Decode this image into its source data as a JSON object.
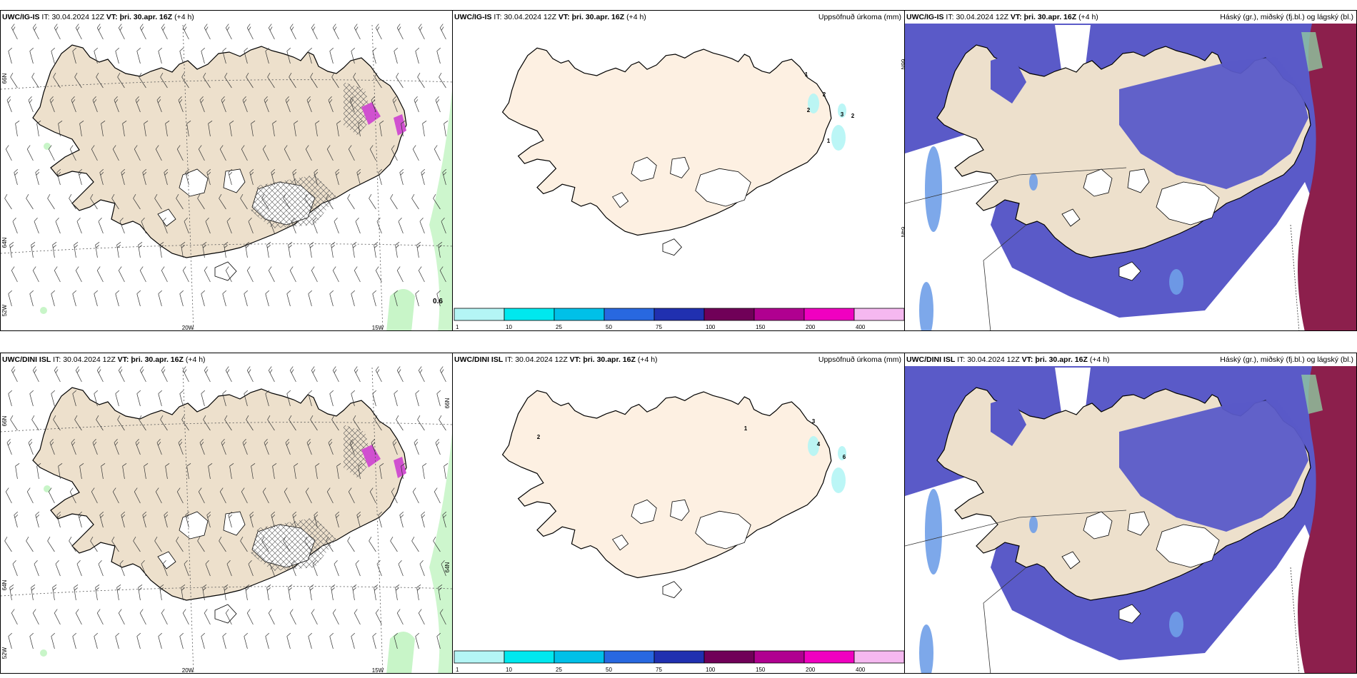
{
  "panels": [
    {
      "id": "top-left",
      "model": "UWC/IG-IS",
      "it_label": "IT:",
      "it_value": "30.04.2024 12Z",
      "vt_label": "VT:",
      "vt_value": "þri. 30.apr. 16Z",
      "lead": "(+4 h)",
      "right_title": "",
      "lat_labels": [
        "66N",
        "64N",
        "52W"
      ],
      "lon_labels": [
        "20W",
        "15W"
      ],
      "value_label": "0.6"
    },
    {
      "id": "top-middle",
      "model": "UWC/IG-IS",
      "it_label": "IT:",
      "it_value": "30.04.2024 12Z",
      "vt_label": "VT:",
      "vt_value": "þri. 30.apr. 16Z",
      "lead": "(+4 h)",
      "right_title": "Uppsöfnuð úrkoma (mm)",
      "lat_labels": [
        "66N",
        "64N"
      ],
      "precip_labels": [
        "1",
        "2",
        "2",
        "3",
        "2",
        "1"
      ]
    },
    {
      "id": "top-right",
      "model": "UWC/IG-IS",
      "it_label": "IT:",
      "it_value": "30.04.2024 12Z",
      "vt_label": "VT:",
      "vt_value": "þri. 30.apr. 16Z",
      "lead": "(+4 h)",
      "right_title": "Háský (gr.), miðský (fj.bl.) og lágský (bl.)"
    },
    {
      "id": "bottom-left",
      "model": "UWC/DINI ISL",
      "it_label": "IT:",
      "it_value": "30.04.2024 12Z",
      "vt_label": "VT:",
      "vt_value": "þri. 30.apr. 16Z",
      "lead": "(+4 h)",
      "right_title": "",
      "lat_labels": [
        "66N",
        "64N",
        "52W",
        "66N",
        "64N"
      ],
      "lon_labels": [
        "20W",
        "15W"
      ]
    },
    {
      "id": "bottom-middle",
      "model": "UWC/DINI ISL",
      "it_label": "IT:",
      "it_value": "30.04.2024 12Z",
      "vt_label": "VT:",
      "vt_value": "þri. 30.apr. 16Z",
      "lead": "(+4 h)",
      "right_title": "Uppsöfnuð úrkoma (mm)",
      "precip_labels": [
        "2",
        "1",
        "3",
        "4",
        "6"
      ]
    },
    {
      "id": "bottom-right",
      "model": "UWC/DINI ISL",
      "it_label": "IT:",
      "it_value": "30.04.2024 12Z",
      "vt_label": "VT:",
      "vt_value": "þri. 30.apr. 16Z",
      "lead": "(+4 h)",
      "right_title": "Háský (gr.), miðský (fj.bl.) og lágský (bl.)"
    }
  ],
  "colorbar": {
    "ticks": [
      "1",
      "10",
      "25",
      "50",
      "75",
      "100",
      "150",
      "200",
      "400"
    ],
    "colors": [
      "#b4f5f5",
      "#00e8ee",
      "#00c0e8",
      "#2868e0",
      "#2030b0",
      "#700058",
      "#b00090",
      "#f000c0",
      "#f5b8f0"
    ]
  },
  "colors": {
    "land": "#ede0cc",
    "land_precip": "#fdf0e2",
    "cloud_mid": "#5a5ac8",
    "cloud_low": "#6f9ee8",
    "cloud_high": "#8c1f4c",
    "green": "#c8f5c8",
    "magenta": "#d050d0"
  }
}
